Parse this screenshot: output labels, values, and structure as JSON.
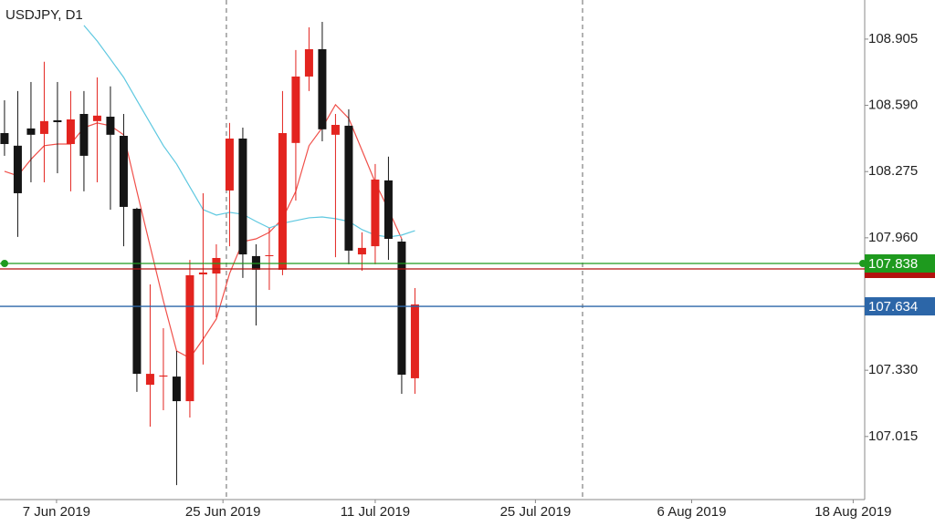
{
  "chart_data": {
    "type": "candlestick",
    "title": "USDJPY, D1",
    "x": [
      0,
      1,
      2,
      3,
      4,
      5,
      6,
      7,
      8,
      9,
      10,
      11,
      12,
      13,
      14,
      15,
      16,
      17,
      18,
      19,
      20,
      21,
      22,
      23,
      24,
      25,
      26,
      27,
      28,
      29,
      30,
      31
    ],
    "open": [
      108.458,
      108.398,
      108.48,
      108.454,
      108.519,
      108.406,
      108.549,
      108.515,
      108.536,
      108.445,
      108.098,
      107.261,
      107.3,
      107.3,
      107.183,
      107.786,
      107.79,
      108.185,
      108.432,
      107.873,
      107.873,
      107.808,
      108.411,
      108.727,
      108.857,
      108.45,
      108.493,
      107.881,
      107.92,
      108.233,
      107.942,
      107.292
    ],
    "high": [
      108.614,
      108.658,
      108.701,
      108.797,
      108.701,
      108.658,
      108.658,
      108.723,
      108.68,
      108.549,
      108.103,
      107.738,
      107.53,
      107.422,
      107.855,
      108.172,
      107.929,
      108.506,
      108.484,
      107.929,
      108.007,
      108.658,
      108.853,
      108.961,
      108.987,
      108.549,
      108.571,
      107.986,
      108.311,
      108.346,
      107.955,
      107.721
    ],
    "low": [
      108.35,
      107.964,
      108.224,
      108.224,
      108.267,
      108.181,
      108.181,
      108.224,
      108.094,
      107.92,
      107.227,
      107.062,
      107.14,
      106.784,
      107.105,
      107.357,
      107.582,
      107.92,
      107.769,
      107.543,
      107.712,
      107.782,
      108.137,
      108.658,
      108.419,
      107.868,
      107.834,
      107.803,
      107.834,
      107.855,
      107.218,
      107.218
    ],
    "close": [
      108.406,
      108.172,
      108.45,
      108.515,
      108.51,
      108.523,
      108.35,
      108.541,
      108.45,
      108.107,
      107.313,
      107.313,
      107.305,
      107.183,
      107.782,
      107.795,
      107.864,
      108.432,
      107.881,
      107.808,
      107.877,
      108.458,
      108.727,
      108.857,
      108.476,
      108.497,
      107.899,
      107.912,
      108.237,
      107.955,
      107.309,
      107.643
    ],
    "up_color": "#e3241f",
    "down_color": "#151515",
    "lines": [
      {
        "color": "#f0504a",
        "values": [
          108.276,
          108.255,
          108.333,
          108.398,
          108.406,
          108.406,
          108.484,
          108.506,
          108.493,
          108.45,
          108.181,
          107.92,
          107.66,
          107.422,
          107.388,
          107.478,
          107.574,
          107.79,
          107.942,
          107.955,
          107.986,
          108.051,
          108.181,
          108.398,
          108.484,
          108.593,
          108.528,
          108.376,
          108.224,
          108.094,
          107.955,
          null
        ]
      },
      {
        "color": "#5ec8e0",
        "values": [
          null,
          null,
          null,
          null,
          null,
          null,
          108.97,
          108.896,
          108.81,
          108.723,
          108.614,
          108.506,
          108.398,
          108.311,
          108.202,
          108.094,
          108.068,
          108.081,
          108.072,
          108.038,
          108.007,
          108.029,
          108.042,
          108.055,
          108.059,
          108.051,
          108.038,
          107.999,
          107.973,
          107.964,
          107.973,
          107.994
        ]
      }
    ],
    "levels": [
      {
        "value": 107.812,
        "color": "#b3120f"
      },
      {
        "value": 107.838,
        "label": "107.838",
        "color": "#1e9a1e"
      },
      {
        "value": 107.634,
        "label": "107.634",
        "color": "#2c66a8"
      }
    ],
    "separators": [
      16.76,
      43.66
    ],
    "xlim": [
      -0.34,
      64.97
    ],
    "ylim": [
      106.715,
      109.091
    ],
    "yticks": [
      108.905,
      {
        "value": 108.59,
        "label": "108.590"
      },
      108.275,
      {
        "value": 107.96,
        "label": "107.960"
      },
      {
        "value": 107.33,
        "label": "107.330"
      },
      107.015
    ],
    "xticks": [
      {
        "value": 3.93,
        "label": "7 Jun 2019"
      },
      {
        "value": 16.5,
        "label": "25 Jun 2019"
      },
      {
        "value": 28,
        "label": "11 Jul 2019"
      },
      {
        "value": 40.1,
        "label": "25 Jul 2019"
      },
      {
        "value": 51.9,
        "label": "6 Aug 2019"
      },
      {
        "value": 64.1,
        "label": "18 Aug 2019"
      }
    ]
  }
}
